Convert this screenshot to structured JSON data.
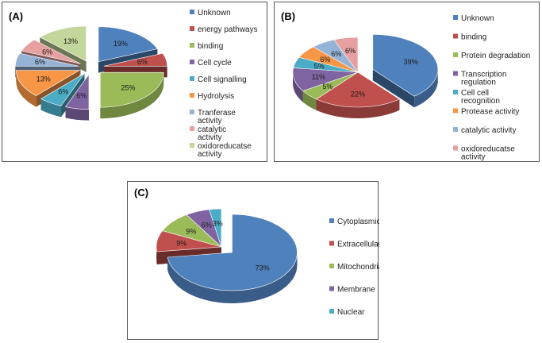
{
  "chart_data": [
    {
      "panel": "(A)",
      "type": "pie",
      "slices": [
        {
          "name": "Unknown",
          "value": 19,
          "label": "19%",
          "color": "#4F81BD",
          "explode": 1
        },
        {
          "name": "energy pathways",
          "value": 6,
          "label": "6%",
          "color": "#C0504D",
          "explode": 1
        },
        {
          "name": "binding",
          "value": 25,
          "label": "25%",
          "color": "#9BBB59",
          "explode": 1
        },
        {
          "name": "Cell cycle",
          "value": 6,
          "label": "6%",
          "color": "#8064A2",
          "explode": 1
        },
        {
          "name": "Cell signalling",
          "value": 6,
          "label": "6%",
          "color": "#4BACC6",
          "explode": 1
        },
        {
          "name": "Hydrolysis",
          "value": 13,
          "label": "13%",
          "color": "#F79646",
          "explode": 1
        },
        {
          "name": "Tranferase activity",
          "value": 6,
          "label": "6%",
          "color": "#95B3D7",
          "explode": 1
        },
        {
          "name": "catalytic activity",
          "value": 6,
          "label": "6%",
          "color": "#E6A0A0",
          "explode": 1
        },
        {
          "name": "oxidoreducatse activity",
          "value": 13,
          "label": "13%",
          "color": "#C3D69B",
          "explode": 1
        }
      ]
    },
    {
      "panel": "(B)",
      "type": "pie",
      "slices": [
        {
          "name": "Unknown",
          "value": 39,
          "label": "39%",
          "color": "#4F81BD",
          "explode": 1
        },
        {
          "name": "binding",
          "value": 22,
          "label": "22%",
          "color": "#C0504D",
          "explode": 0
        },
        {
          "name": "Protein degradation",
          "value": 5,
          "label": "5%",
          "color": "#9BBB59",
          "explode": 0
        },
        {
          "name": "Transcription regulation",
          "value": 11,
          "label": "11%",
          "color": "#8064A2",
          "explode": 0
        },
        {
          "name": "Cell cell recognition",
          "value": 5,
          "label": "5%",
          "color": "#4BACC6",
          "explode": 0
        },
        {
          "name": "Protease activity",
          "value": 6,
          "label": "6%",
          "color": "#F79646",
          "explode": 0
        },
        {
          "name": "catalytic activity",
          "value": 6,
          "label": "6%",
          "color": "#95B3D7",
          "explode": 0
        },
        {
          "name": "oxidoreducatse activity",
          "value": 6,
          "label": "6%",
          "color": "#E6A0A0",
          "explode": 0
        }
      ]
    },
    {
      "panel": "(C)",
      "type": "pie",
      "slices": [
        {
          "name": "Cytoplasmic",
          "value": 73,
          "label": "73%",
          "color": "#4F81BD",
          "explode": 1
        },
        {
          "name": "Extracellular",
          "value": 9,
          "label": "9%",
          "color": "#C0504D",
          "explode": 0
        },
        {
          "name": "Mitochondria",
          "value": 9,
          "label": "9%",
          "color": "#9BBB59",
          "explode": 0
        },
        {
          "name": "Membrane",
          "value": 6,
          "label": "6%",
          "color": "#8064A2",
          "explode": 0
        },
        {
          "name": "Nuclear",
          "value": 3,
          "label": "3%",
          "color": "#4BACC6",
          "explode": 0
        }
      ]
    }
  ]
}
